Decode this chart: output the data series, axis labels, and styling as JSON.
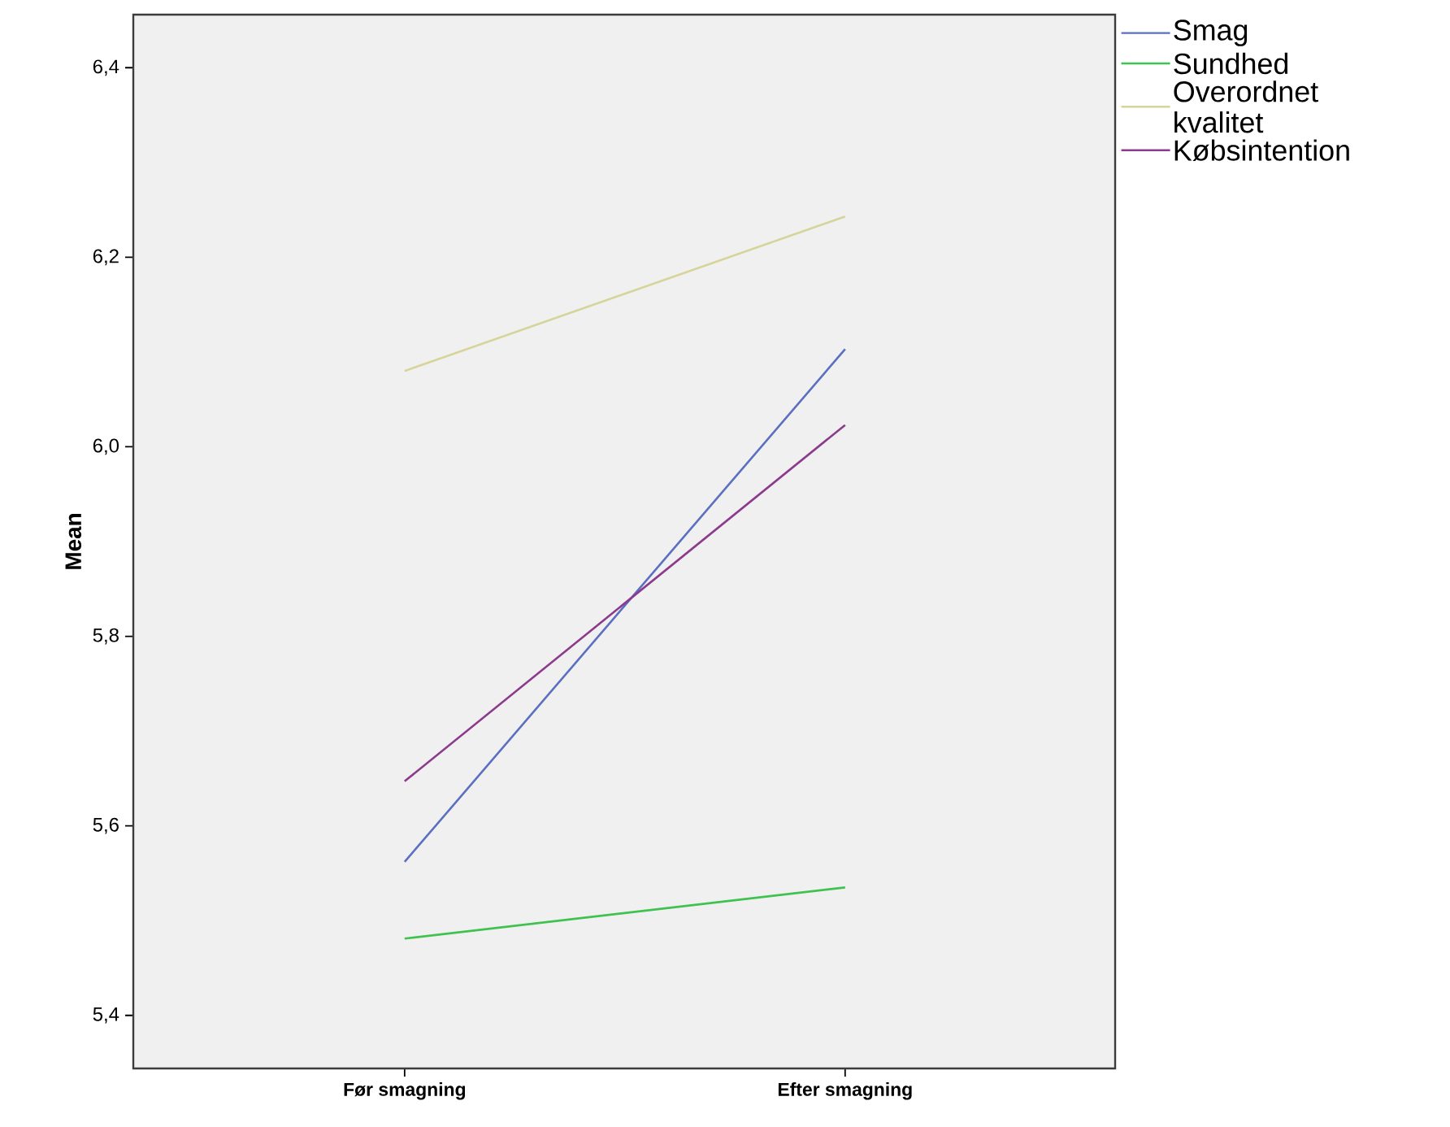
{
  "chart_data": {
    "type": "line",
    "ylabel": "Mean",
    "categories": [
      "Før smagning",
      "Efter smagning"
    ],
    "series": [
      {
        "name": "Smag",
        "color": "#5b6fc1",
        "values": [
          5.562,
          6.103
        ]
      },
      {
        "name": "Sundhed",
        "color": "#3fc24f",
        "values": [
          5.481,
          5.535
        ]
      },
      {
        "name": "Overordnet kvalitet",
        "color": "#d6d49a",
        "values": [
          6.08,
          6.243
        ]
      },
      {
        "name": "Købsintention",
        "color": "#8c3b8c",
        "values": [
          5.647,
          6.023
        ]
      }
    ],
    "ylim": [
      5.344,
      6.456
    ],
    "yticks": [
      {
        "value": 5.4,
        "label": "5,4"
      },
      {
        "value": 5.6,
        "label": "5,6"
      },
      {
        "value": 5.8,
        "label": "5,8"
      },
      {
        "value": 6.0,
        "label": "6,0"
      },
      {
        "value": 6.2,
        "label": "6,2"
      },
      {
        "value": 6.4,
        "label": "6,4"
      }
    ],
    "grid": false,
    "legend": "top right",
    "marker": "none",
    "line_style": "solid"
  }
}
